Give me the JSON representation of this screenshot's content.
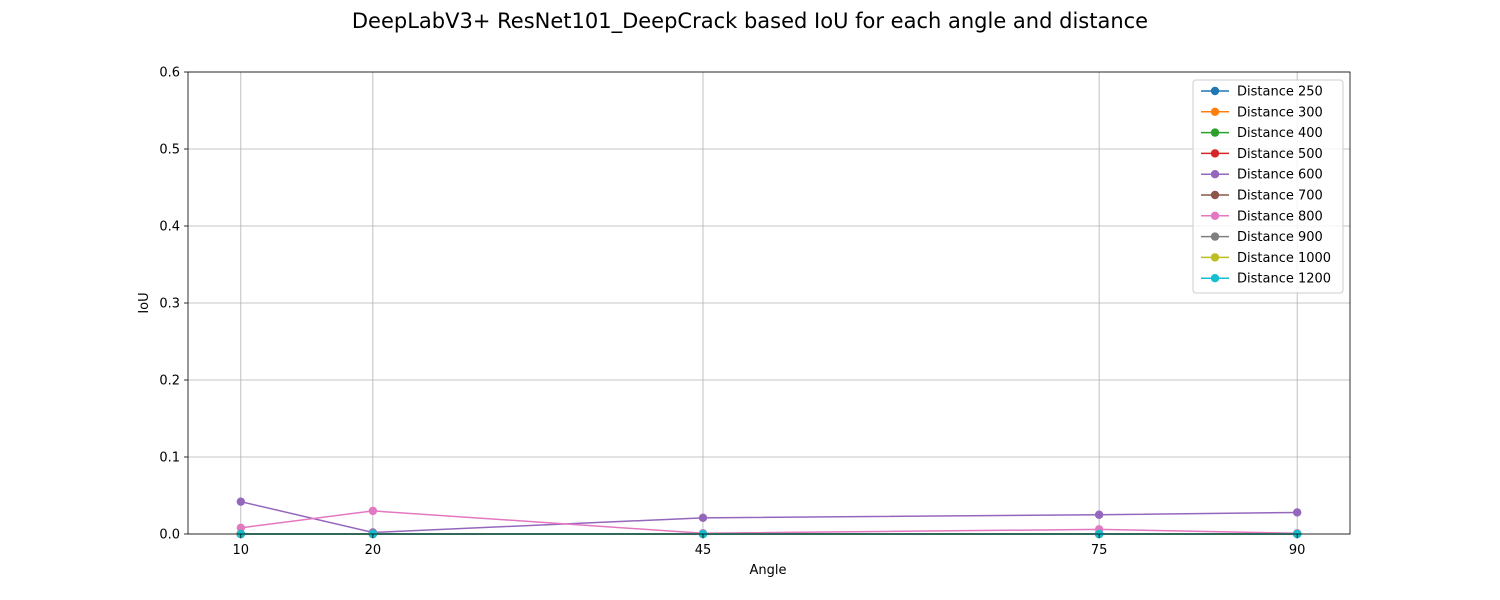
{
  "chart_data": {
    "type": "line",
    "title": "DeepLabV3+ ResNet101_DeepCrack based IoU for each angle and distance",
    "xlabel": "Angle",
    "ylabel": "IoU",
    "x": [
      10,
      20,
      45,
      75,
      90
    ],
    "x_tick_labels": [
      "10",
      "20",
      "45",
      "75",
      "90"
    ],
    "xlim": [
      6,
      94
    ],
    "ylim": [
      0,
      0.6
    ],
    "y_ticks": [
      0,
      0.1,
      0.2,
      0.3,
      0.4,
      0.5,
      0.6
    ],
    "y_tick_labels": [
      "0.0",
      "0.1",
      "0.2",
      "0.3",
      "0.4",
      "0.5",
      "0.6"
    ],
    "grid": true,
    "legend_position": "top-right",
    "series": [
      {
        "name": "Distance 250",
        "color": "#1f77b4",
        "values": [
          0,
          0,
          0,
          0,
          0
        ]
      },
      {
        "name": "Distance 300",
        "color": "#ff7f0e",
        "values": [
          0,
          0,
          0,
          0,
          0
        ]
      },
      {
        "name": "Distance 400",
        "color": "#2ca02c",
        "values": [
          0,
          0,
          0,
          0,
          0
        ]
      },
      {
        "name": "Distance 500",
        "color": "#d62728",
        "values": [
          0,
          0,
          0,
          0,
          0
        ]
      },
      {
        "name": "Distance 600",
        "color": "#9467bd",
        "values": [
          0.042,
          0.002,
          0.021,
          0.025,
          0.028
        ]
      },
      {
        "name": "Distance 700",
        "color": "#8c564b",
        "values": [
          0,
          0,
          0,
          0,
          0
        ]
      },
      {
        "name": "Distance 800",
        "color": "#e377c2",
        "values": [
          0.008,
          0.03,
          0.001,
          0.006,
          0.001
        ]
      },
      {
        "name": "Distance 900",
        "color": "#7f7f7f",
        "values": [
          0,
          0,
          0,
          0,
          0
        ]
      },
      {
        "name": "Distance 1000",
        "color": "#bcbd22",
        "values": [
          0,
          0,
          0,
          0,
          0
        ]
      },
      {
        "name": "Distance 1200",
        "color": "#17becf",
        "values": [
          0,
          0,
          0,
          0,
          0
        ]
      }
    ]
  }
}
